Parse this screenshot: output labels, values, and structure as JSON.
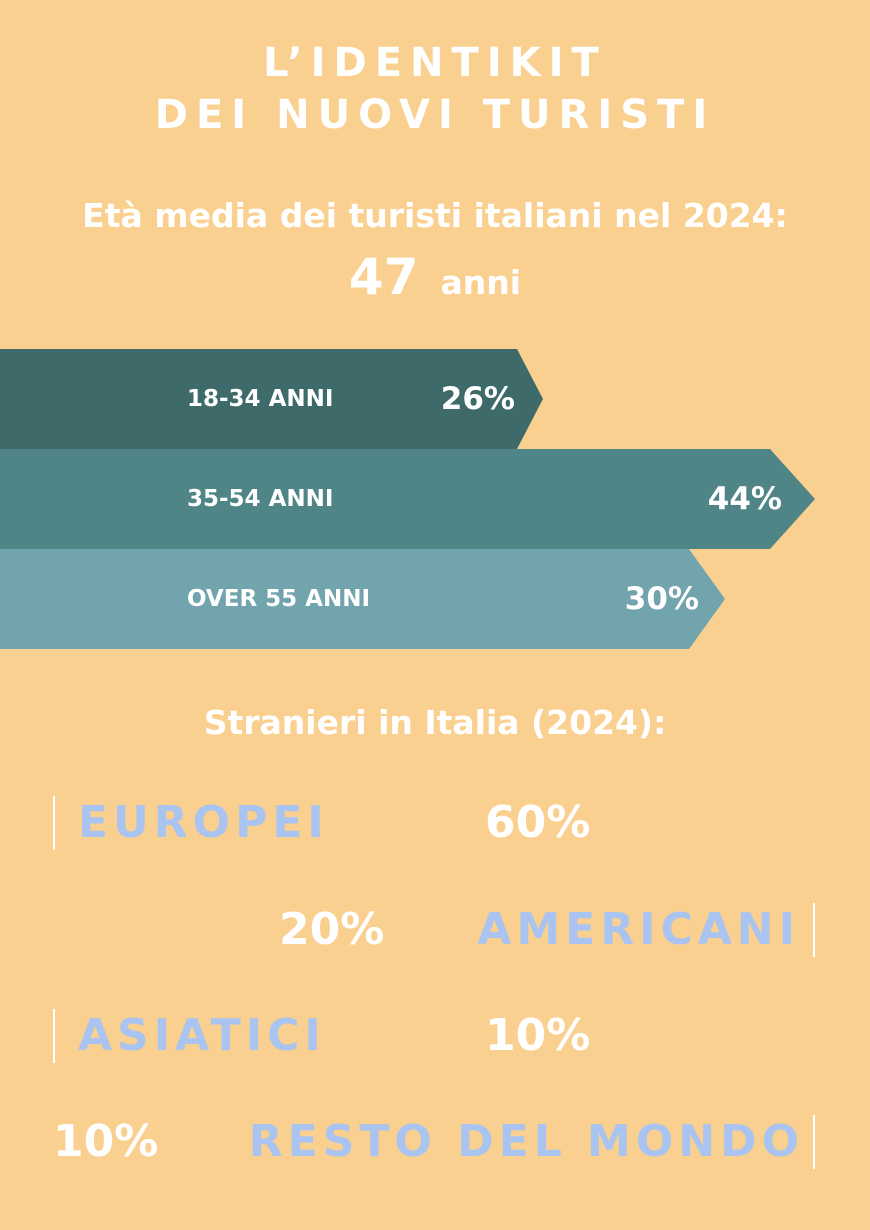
{
  "colors": {
    "background": "#F9D08F",
    "text": "#FFFFFF",
    "accent_blue": "#A9C4F0",
    "bar_1": "#3E6B6A",
    "bar_2": "#508587",
    "bar_3": "#72A4AD"
  },
  "title": {
    "line1": "L’IDENTIKIT",
    "line2": "DEI NUOVI TURISTI"
  },
  "average_age": {
    "label": "Età media dei turisti italiani nel 2024:",
    "value": "47",
    "unit": "anni"
  },
  "age_groups": [
    {
      "label": "18-34 ANNI",
      "value": "26%",
      "share": 26
    },
    {
      "label": "35-54 ANNI",
      "value": "44%",
      "share": 44
    },
    {
      "label": "OVER 55 ANNI",
      "value": "30%",
      "share": 30
    }
  ],
  "foreigners": {
    "label": "Stranieri in Italia (2024):",
    "items": [
      {
        "name": "EUROPEI",
        "value": "60%"
      },
      {
        "name": "AMERICANI",
        "value": "20%"
      },
      {
        "name": "ASIATICI",
        "value": "10%"
      },
      {
        "name": "RESTO DEL MONDO",
        "value": "10%"
      }
    ]
  }
}
